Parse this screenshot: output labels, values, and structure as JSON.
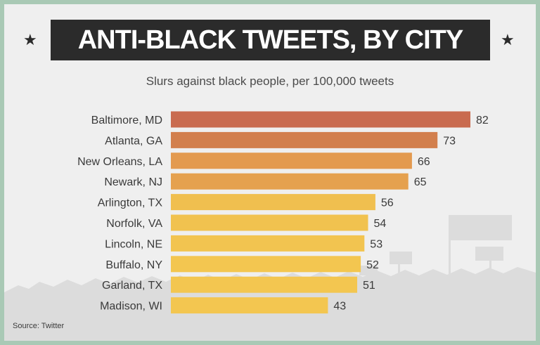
{
  "title": "ANTI-BLACK TWEETS, BY CITY",
  "subtitle": "Slurs against black people, per 100,000 tweets",
  "source": "Source: Twitter",
  "decorations": {
    "star_glyph": "★",
    "star_icon": "star-icon"
  },
  "colors": {
    "frame": "#a9c9b5",
    "background": "#efefef",
    "banner": "#2b2b2b",
    "bar_gradient": [
      "#c96b4f",
      "#d27f4d",
      "#e39a4f",
      "#e5a14f",
      "#f0bf4f",
      "#f1c24f",
      "#f2c450",
      "#f3c650",
      "#f3c650",
      "#f3c650"
    ]
  },
  "chart_data": {
    "type": "bar",
    "orientation": "horizontal",
    "categories": [
      "Baltimore, MD",
      "Atlanta, GA",
      "New Orleans, LA",
      "Newark, NJ",
      "Arlington, TX",
      "Norfolk, VA",
      "Lincoln, NE",
      "Buffalo, NY",
      "Garland, TX",
      "Madison, WI"
    ],
    "values": [
      82,
      73,
      66,
      65,
      56,
      54,
      53,
      52,
      51,
      43
    ],
    "title": "ANTI-BLACK TWEETS, BY CITY",
    "subtitle": "Slurs against black people, per 100,000 tweets",
    "xlabel": "",
    "ylabel": "",
    "xlim": [
      0,
      82
    ],
    "grid": false,
    "data_labels": true
  }
}
